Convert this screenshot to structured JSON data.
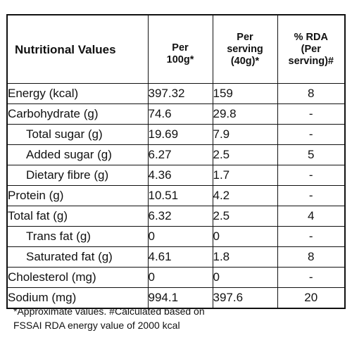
{
  "table": {
    "headers": {
      "title": "Nutritional Values",
      "per100_line1": "Per",
      "per100_line2": "100g*",
      "serving_line1": "Per",
      "serving_line2": "serving",
      "serving_line3": "(40g)*",
      "rda_line1": "% RDA",
      "rda_line2": "(Per",
      "rda_line3": "serving)#"
    },
    "rows": [
      {
        "label": "Energy (kcal)",
        "per100": "397.32",
        "serving": "159",
        "rda": "8"
      },
      {
        "label": "Carbohydrate (g)",
        "per100": "74.6",
        "serving": "29.8",
        "rda": "-"
      },
      {
        "label": "Total sugar (g)",
        "per100": "19.69",
        "serving": "7.9",
        "rda": "-"
      },
      {
        "label": "Added sugar (g)",
        "per100": "6.27",
        "serving": "2.5",
        "rda": "5"
      },
      {
        "label": "Dietary fibre (g)",
        "per100": "4.36",
        "serving": "1.7",
        "rda": "-"
      },
      {
        "label": "Protein (g)",
        "per100": "10.51",
        "serving": "4.2",
        "rda": "-"
      },
      {
        "label": "Total fat (g)",
        "per100": "6.32",
        "serving": "2.5",
        "rda": "4"
      },
      {
        "label": "Trans fat (g)",
        "per100": "0",
        "serving": "0",
        "rda": "-"
      },
      {
        "label": "Saturated fat (g)",
        "per100": "4.61",
        "serving": "1.8",
        "rda": "8"
      },
      {
        "label": "Cholesterol (mg)",
        "per100": "0",
        "serving": "0",
        "rda": "-"
      },
      {
        "label": "Sodium (mg)",
        "per100": "994.1",
        "serving": "397.6",
        "rda": "20"
      }
    ]
  },
  "footnote": {
    "line1": "*Approximate values. #Calculated based on",
    "line2": "FSSAI RDA energy value of 2000 kcal"
  }
}
